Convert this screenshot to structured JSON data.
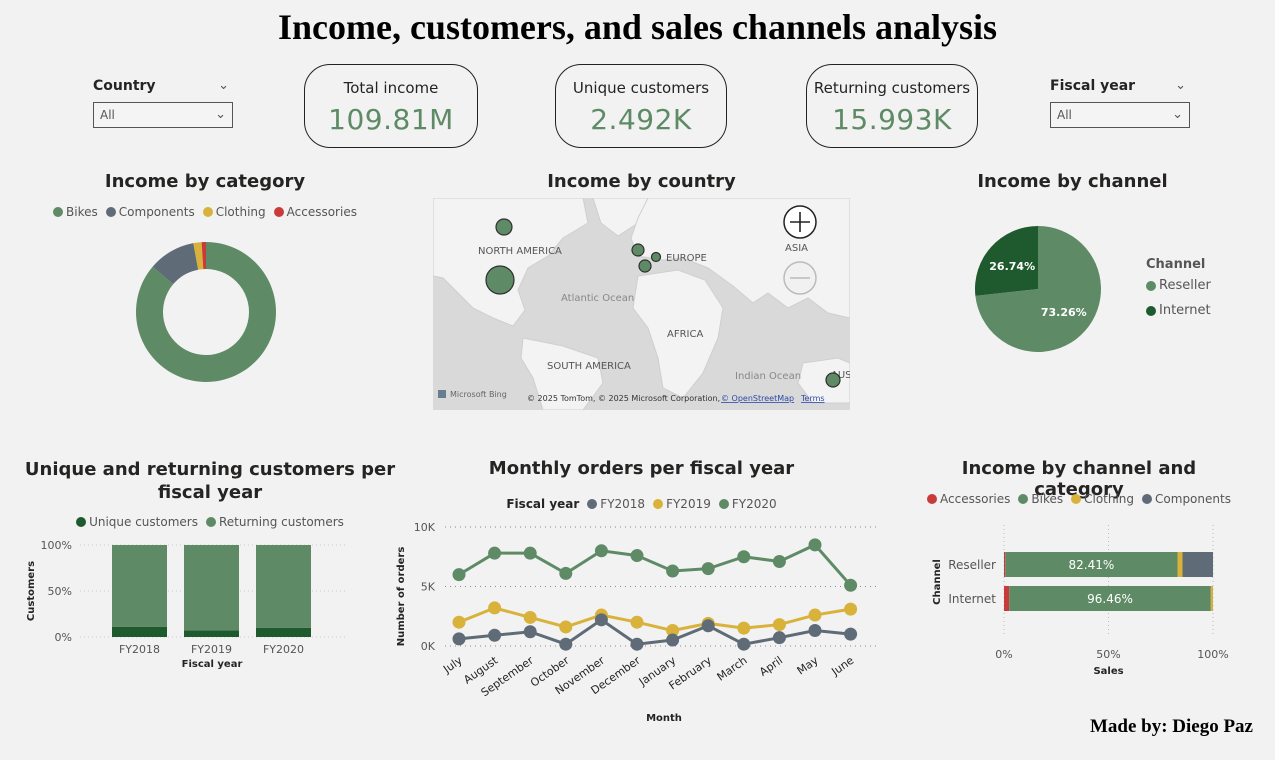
{
  "title": "Income, customers, and sales channels analysis",
  "author": "Made by: Diego Paz",
  "colors": {
    "bikes": "#5e8b66",
    "components": "#5f6b76",
    "clothing": "#d8b23a",
    "accessories": "#c93b3b",
    "internet": "#1e5a2e",
    "fy2018": "#5f6b76",
    "fy2019": "#d8b23a",
    "fy2020": "#5e8b66",
    "kpi_value": "#5e8b66"
  },
  "slicers": {
    "country": {
      "label": "Country",
      "value": "All"
    },
    "fiscal_year": {
      "label": "Fiscal year",
      "value": "All"
    }
  },
  "kpis": [
    {
      "label": "Total income",
      "value": "109.81M"
    },
    {
      "label": "Unique customers",
      "value": "2.492K"
    },
    {
      "label": "Returning customers",
      "value": "15.993K"
    }
  ],
  "map": {
    "title": "Income by country",
    "labels": {
      "north_america": "NORTH AMERICA",
      "europe": "EUROPE",
      "asia": "ASIA",
      "atlantic": "Atlantic Ocean",
      "africa": "AFRICA",
      "south_america": "SOUTH AMERICA",
      "indian": "Indian Ocean",
      "aust": "AUST"
    },
    "attribution": "© 2025 TomTom, © 2025 Microsoft Corporation,",
    "osm": "© OpenStreetMap",
    "terms": "Terms",
    "bing": "Microsoft Bing"
  },
  "chart_data": [
    {
      "id": "category",
      "type": "pie",
      "title": "Income by category",
      "donut": true,
      "legend": [
        "Bikes",
        "Components",
        "Clothing",
        "Accessories"
      ],
      "values": [
        86.2,
        10.9,
        1.9,
        1.0
      ]
    },
    {
      "id": "channel",
      "type": "pie",
      "title": "Income by channel",
      "legend_title": "Channel",
      "legend": [
        "Reseller",
        "Internet"
      ],
      "values": [
        73.26,
        26.74
      ],
      "labels": [
        "73.26%",
        "26.74%"
      ]
    },
    {
      "id": "customers",
      "type": "bar",
      "stacked": "100%",
      "title": "Unique and returning customers per fiscal year",
      "legend": [
        "Unique customers",
        "Returning customers"
      ],
      "categories": [
        "FY2018",
        "FY2019",
        "FY2020"
      ],
      "series": [
        {
          "name": "Unique customers",
          "values": [
            11,
            7,
            10
          ]
        },
        {
          "name": "Returning customers",
          "values": [
            89,
            93,
            90
          ]
        }
      ],
      "yticks": [
        "100%",
        "50%",
        "0%"
      ],
      "ylabel": "Customers",
      "xlabel": "Fiscal year"
    },
    {
      "id": "monthly",
      "type": "line",
      "title": "Monthly orders per fiscal year",
      "legend_title": "Fiscal year",
      "categories": [
        "July",
        "August",
        "September",
        "October",
        "November",
        "December",
        "January",
        "February",
        "March",
        "April",
        "May",
        "June"
      ],
      "series": [
        {
          "name": "FY2018",
          "values": [
            600,
            900,
            1200,
            150,
            2200,
            150,
            500,
            1700,
            150,
            700,
            1300,
            1000
          ]
        },
        {
          "name": "FY2019",
          "values": [
            2000,
            3200,
            2400,
            1600,
            2600,
            2000,
            1300,
            1900,
            1500,
            1800,
            2600,
            3100
          ]
        },
        {
          "name": "FY2020",
          "values": [
            6000,
            7800,
            7800,
            6100,
            8000,
            7600,
            6300,
            6500,
            7500,
            7100,
            8500,
            5100
          ]
        }
      ],
      "ylim": [
        0,
        10000
      ],
      "yticks": [
        "10K",
        "5K",
        "0K"
      ],
      "ylabel": "Number of orders",
      "xlabel": "Month"
    },
    {
      "id": "channel_category",
      "type": "bar",
      "orientation": "horizontal",
      "stacked": "100%",
      "title": "Income by channel and category",
      "legend": [
        "Accessories",
        "Bikes",
        "Clothing",
        "Components"
      ],
      "categories": [
        "Reseller",
        "Internet"
      ],
      "series": [
        {
          "name": "Accessories",
          "values": [
            0.6,
            2.5
          ]
        },
        {
          "name": "Bikes",
          "values": [
            82.41,
            96.46
          ]
        },
        {
          "name": "Clothing",
          "values": [
            2.4,
            1.0
          ]
        },
        {
          "name": "Components",
          "values": [
            14.59,
            0.04
          ]
        }
      ],
      "bar_labels": [
        "82.41%",
        "96.46%"
      ],
      "xticks": [
        "0%",
        "50%",
        "100%"
      ],
      "ylabel": "Channel",
      "xlabel": "Sales"
    }
  ]
}
